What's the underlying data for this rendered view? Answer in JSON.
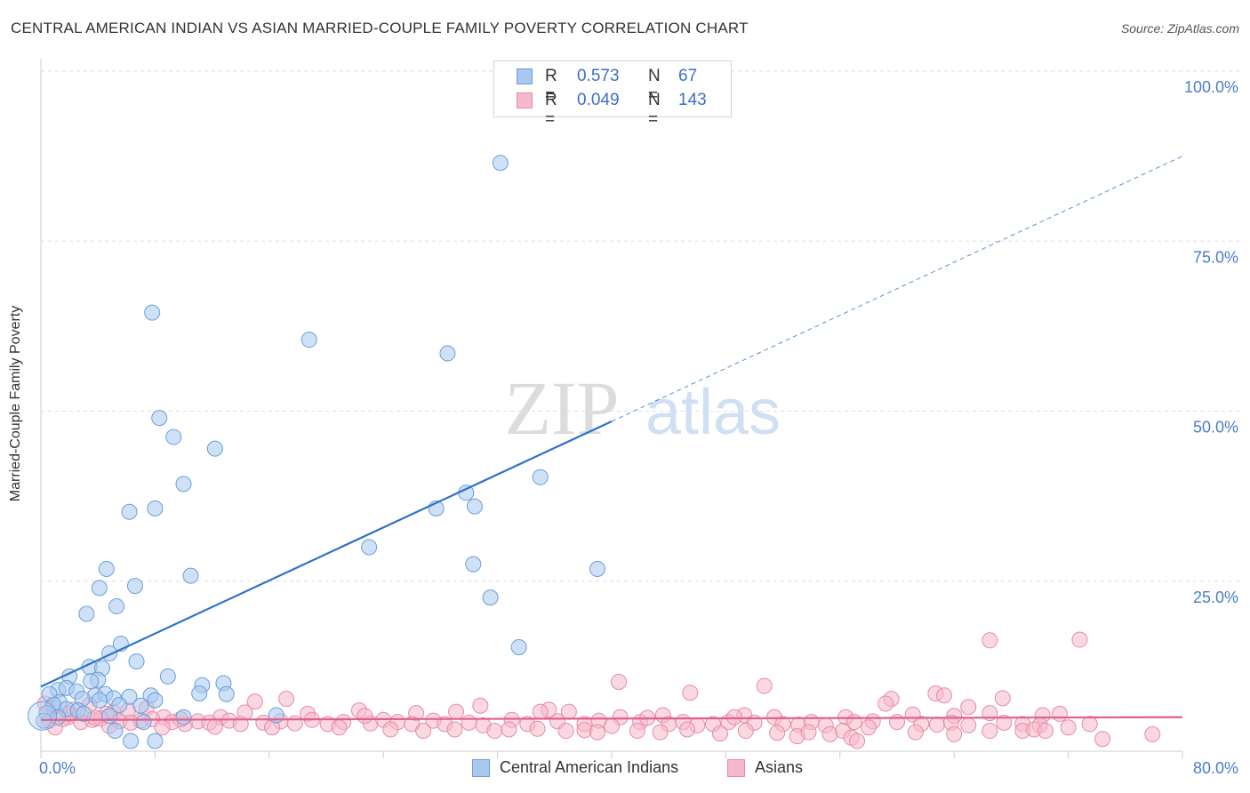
{
  "title": "CENTRAL AMERICAN INDIAN VS ASIAN MARRIED-COUPLE FAMILY POVERTY CORRELATION CHART",
  "source": "Source: ZipAtlas.com",
  "watermark": {
    "zip": "ZIP",
    "atlas": "atlas"
  },
  "legend": {
    "series1": {
      "r_label": "R =",
      "r_value": "0.573",
      "n_label": "N =",
      "n_value": "67"
    },
    "series2": {
      "r_label": "R =",
      "r_value": "0.049",
      "n_label": "N =",
      "n_value": "143"
    }
  },
  "colors": {
    "blue_fill": "#a8c8f0",
    "blue_stroke": "#6a9fd8",
    "blue_line": "#2f72c9",
    "pink_fill": "#f6b8cb",
    "pink_stroke": "#e88aa7",
    "pink_line": "#e0608b",
    "tick_text": "#4a7cc9"
  },
  "chart_data": {
    "type": "scatter",
    "title": "CENTRAL AMERICAN INDIAN VS ASIAN MARRIED-COUPLE FAMILY POVERTY CORRELATION CHART",
    "xlabel": "",
    "ylabel": "Married-Couple Family Poverty",
    "xlim": [
      0,
      80
    ],
    "ylim": [
      0,
      100
    ],
    "x_tick_labels": [
      "0.0%",
      "80.0%"
    ],
    "y_ticks": [
      25,
      50,
      75,
      100
    ],
    "y_tick_labels": [
      "25.0%",
      "50.0%",
      "75.0%",
      "100.0%"
    ],
    "grid": true,
    "legend_position": "top-center",
    "series": [
      {
        "name": "Central American Indians",
        "r": 0.573,
        "n": 67,
        "trend": {
          "x0": 0,
          "y0": 9.5,
          "x1": 40,
          "y1": 48.5,
          "dashed_to_x": 80,
          "dashed_to_y": 87.5
        },
        "points": [
          [
            32.2,
            86.5
          ],
          [
            7.8,
            64.5
          ],
          [
            18.8,
            60.5
          ],
          [
            28.5,
            58.5
          ],
          [
            8.3,
            49.0
          ],
          [
            9.3,
            46.2
          ],
          [
            12.2,
            44.5
          ],
          [
            10.0,
            39.3
          ],
          [
            35.0,
            40.3
          ],
          [
            29.8,
            38.0
          ],
          [
            6.2,
            35.2
          ],
          [
            8.0,
            35.7
          ],
          [
            27.7,
            35.7
          ],
          [
            30.4,
            36.0
          ],
          [
            23.0,
            30.0
          ],
          [
            30.3,
            27.5
          ],
          [
            39.0,
            26.8
          ],
          [
            4.6,
            26.8
          ],
          [
            10.5,
            25.8
          ],
          [
            6.6,
            24.3
          ],
          [
            4.1,
            24.0
          ],
          [
            5.3,
            21.3
          ],
          [
            3.2,
            20.2
          ],
          [
            31.5,
            22.6
          ],
          [
            33.5,
            15.3
          ],
          [
            5.6,
            15.8
          ],
          [
            4.8,
            14.4
          ],
          [
            6.7,
            13.2
          ],
          [
            3.4,
            12.4
          ],
          [
            4.3,
            12.2
          ],
          [
            2.0,
            11.0
          ],
          [
            8.9,
            11.0
          ],
          [
            4.0,
            10.5
          ],
          [
            1.2,
            9.0
          ],
          [
            11.3,
            9.7
          ],
          [
            3.5,
            10.3
          ],
          [
            12.8,
            10.0
          ],
          [
            0.6,
            8.4
          ],
          [
            1.8,
            9.3
          ],
          [
            2.5,
            8.8
          ],
          [
            3.8,
            8.2
          ],
          [
            4.5,
            8.4
          ],
          [
            5.1,
            7.8
          ],
          [
            6.2,
            8.0
          ],
          [
            7.7,
            8.2
          ],
          [
            8.0,
            7.5
          ],
          [
            11.1,
            8.5
          ],
          [
            13.0,
            8.4
          ],
          [
            1.3,
            7.2
          ],
          [
            2.9,
            7.7
          ],
          [
            4.1,
            7.5
          ],
          [
            0.9,
            6.8
          ],
          [
            5.5,
            6.8
          ],
          [
            1.8,
            6.2
          ],
          [
            0.4,
            5.6
          ],
          [
            2.6,
            6.0
          ],
          [
            4.8,
            5.2
          ],
          [
            7.0,
            6.7
          ],
          [
            3.0,
            5.5
          ],
          [
            1.2,
            5.0
          ],
          [
            10.0,
            5.0
          ],
          [
            16.5,
            5.3
          ],
          [
            7.2,
            4.3
          ],
          [
            5.2,
            3.0
          ],
          [
            6.3,
            1.5
          ],
          [
            8.0,
            1.5
          ],
          [
            0.2,
            4.5
          ]
        ]
      },
      {
        "name": "Asians",
        "r": 0.049,
        "n": 143,
        "trend": {
          "x0": 0,
          "y0": 4.6,
          "x1": 80,
          "y1": 5.0
        },
        "points": [
          [
            66.5,
            16.3
          ],
          [
            72.8,
            16.4
          ],
          [
            40.5,
            10.2
          ],
          [
            50.7,
            9.6
          ],
          [
            45.5,
            8.6
          ],
          [
            62.7,
            8.5
          ],
          [
            63.3,
            8.2
          ],
          [
            67.4,
            7.8
          ],
          [
            59.6,
            7.7
          ],
          [
            59.2,
            7.0
          ],
          [
            15.0,
            7.3
          ],
          [
            30.8,
            6.7
          ],
          [
            65.0,
            6.5
          ],
          [
            66.5,
            5.6
          ],
          [
            17.2,
            7.7
          ],
          [
            6.1,
            6.0
          ],
          [
            3.4,
            6.8
          ],
          [
            5.1,
            5.7
          ],
          [
            7.4,
            6.3
          ],
          [
            1.9,
            5.0
          ],
          [
            2.3,
            6.1
          ],
          [
            4.6,
            5.5
          ],
          [
            8.6,
            5.0
          ],
          [
            12.6,
            5.0
          ],
          [
            14.3,
            5.7
          ],
          [
            18.7,
            5.5
          ],
          [
            22.3,
            6.0
          ],
          [
            26.3,
            5.6
          ],
          [
            29.1,
            5.8
          ],
          [
            35.6,
            6.1
          ],
          [
            37.0,
            5.8
          ],
          [
            40.6,
            5.0
          ],
          [
            43.6,
            5.3
          ],
          [
            49.3,
            5.3
          ],
          [
            51.4,
            5.0
          ],
          [
            56.4,
            5.0
          ],
          [
            61.1,
            5.4
          ],
          [
            64.0,
            5.2
          ],
          [
            70.2,
            5.3
          ],
          [
            71.4,
            5.5
          ],
          [
            0.6,
            4.5
          ],
          [
            1.5,
            4.7
          ],
          [
            2.8,
            4.3
          ],
          [
            3.6,
            4.6
          ],
          [
            4.2,
            4.8
          ],
          [
            5.5,
            4.4
          ],
          [
            6.3,
            4.2
          ],
          [
            7.0,
            4.5
          ],
          [
            7.8,
            4.7
          ],
          [
            9.2,
            4.3
          ],
          [
            10.1,
            4.0
          ],
          [
            11.0,
            4.4
          ],
          [
            11.8,
            4.2
          ],
          [
            13.2,
            4.5
          ],
          [
            14.0,
            4.0
          ],
          [
            15.6,
            4.2
          ],
          [
            16.8,
            4.4
          ],
          [
            17.8,
            4.1
          ],
          [
            19.0,
            4.6
          ],
          [
            20.1,
            4.0
          ],
          [
            21.2,
            4.3
          ],
          [
            23.1,
            4.1
          ],
          [
            24.0,
            4.6
          ],
          [
            25.0,
            4.3
          ],
          [
            26.0,
            4.0
          ],
          [
            27.5,
            4.5
          ],
          [
            28.3,
            4.0
          ],
          [
            30.0,
            4.2
          ],
          [
            31.0,
            3.8
          ],
          [
            33.0,
            4.6
          ],
          [
            34.1,
            4.0
          ],
          [
            36.2,
            4.4
          ],
          [
            38.1,
            4.0
          ],
          [
            39.1,
            4.5
          ],
          [
            40.0,
            3.7
          ],
          [
            42.0,
            4.3
          ],
          [
            44.0,
            4.0
          ],
          [
            45.0,
            4.3
          ],
          [
            46.0,
            3.8
          ],
          [
            47.1,
            4.0
          ],
          [
            48.2,
            4.3
          ],
          [
            50.0,
            4.2
          ],
          [
            52.0,
            4.0
          ],
          [
            53.1,
            3.9
          ],
          [
            54.0,
            4.3
          ],
          [
            55.0,
            3.8
          ],
          [
            57.0,
            4.3
          ],
          [
            58.3,
            4.4
          ],
          [
            60.0,
            4.3
          ],
          [
            61.7,
            4.0
          ],
          [
            62.8,
            3.9
          ],
          [
            63.8,
            4.2
          ],
          [
            65.0,
            3.8
          ],
          [
            67.5,
            4.2
          ],
          [
            68.8,
            4.0
          ],
          [
            70.0,
            3.8
          ],
          [
            72.0,
            3.5
          ],
          [
            73.5,
            4.0
          ],
          [
            0.8,
            6.5
          ],
          [
            1.0,
            3.5
          ],
          [
            4.8,
            3.7
          ],
          [
            8.5,
            3.5
          ],
          [
            12.2,
            3.6
          ],
          [
            16.2,
            3.5
          ],
          [
            20.9,
            3.5
          ],
          [
            24.5,
            3.2
          ],
          [
            26.8,
            3.0
          ],
          [
            29.0,
            3.2
          ],
          [
            31.8,
            3.0
          ],
          [
            32.8,
            3.2
          ],
          [
            34.8,
            3.3
          ],
          [
            36.8,
            3.0
          ],
          [
            38.1,
            3.1
          ],
          [
            39.0,
            2.8
          ],
          [
            41.8,
            3.0
          ],
          [
            43.4,
            2.8
          ],
          [
            45.3,
            3.2
          ],
          [
            47.6,
            2.6
          ],
          [
            49.4,
            3.0
          ],
          [
            51.6,
            2.7
          ],
          [
            53.0,
            2.2
          ],
          [
            53.8,
            2.8
          ],
          [
            55.3,
            2.5
          ],
          [
            56.2,
            3.0
          ],
          [
            56.8,
            2.0
          ],
          [
            57.2,
            1.5
          ],
          [
            58.0,
            3.5
          ],
          [
            61.3,
            2.8
          ],
          [
            64.0,
            2.5
          ],
          [
            66.5,
            3.0
          ],
          [
            68.8,
            3.0
          ],
          [
            69.6,
            3.2
          ],
          [
            70.4,
            3.0
          ],
          [
            74.4,
            1.8
          ],
          [
            77.9,
            2.5
          ],
          [
            0.3,
            7.0
          ],
          [
            2.0,
            5.5
          ],
          [
            3.8,
            4.9
          ],
          [
            9.8,
            4.7
          ],
          [
            22.7,
            5.2
          ],
          [
            35.0,
            5.8
          ],
          [
            42.5,
            4.9
          ],
          [
            48.6,
            5.0
          ]
        ]
      }
    ]
  },
  "bottom_legend": {
    "series1": "Central American Indians",
    "series2": "Asians"
  }
}
